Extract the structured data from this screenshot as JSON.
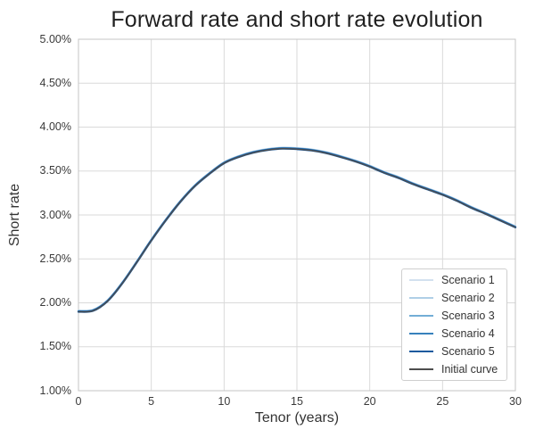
{
  "title": "Forward rate and short rate evolution",
  "axes": {
    "xlabel": "Tenor (years)",
    "ylabel": "Short rate",
    "x_ticks": [
      "0",
      "5",
      "10",
      "15",
      "20",
      "25",
      "30"
    ],
    "y_ticks": [
      "5.00%",
      "4.50%",
      "4.00%",
      "3.50%",
      "3.00%",
      "2.50%",
      "2.00%",
      "1.50%",
      "1.00%"
    ]
  },
  "legend": {
    "position": "lower right",
    "items": [
      {
        "label": "Scenario 1",
        "color": "#d3e1ef"
      },
      {
        "label": "Scenario 2",
        "color": "#afcfe6"
      },
      {
        "label": "Scenario 3",
        "color": "#73aed6"
      },
      {
        "label": "Scenario 4",
        "color": "#3781bc"
      },
      {
        "label": "Scenario 5",
        "color": "#1a5a9e"
      },
      {
        "label": "Initial curve",
        "color": "#4d4d4d"
      }
    ]
  },
  "colors": {
    "grid": "#dadada",
    "plot_border": "#c6c6c6",
    "tick_text": "#3a3a3a",
    "title_text": "#1f1f1f"
  },
  "chart_data": {
    "type": "line",
    "title": "Forward rate and short rate evolution",
    "xlabel": "Tenor (years)",
    "ylabel": "Short rate",
    "xlim": [
      0,
      30
    ],
    "ylim_percent": [
      1.0,
      5.0
    ],
    "grid": true,
    "legend_position": "lower right",
    "note": "All six curves overlap almost exactly; values in percent",
    "x": [
      0,
      1,
      2,
      3,
      4,
      5,
      6,
      7,
      8,
      9,
      10,
      11,
      12,
      13,
      14,
      15,
      16,
      17,
      18,
      19,
      20,
      21,
      22,
      23,
      24,
      25,
      26,
      27,
      28,
      29,
      30
    ],
    "series": [
      {
        "name": "Scenario 1",
        "color": "#d3e1ef",
        "values": [
          1.9,
          1.91,
          2.02,
          2.22,
          2.46,
          2.71,
          2.94,
          3.15,
          3.33,
          3.47,
          3.59,
          3.66,
          3.71,
          3.74,
          3.755,
          3.75,
          3.735,
          3.705,
          3.66,
          3.61,
          3.55,
          3.48,
          3.42,
          3.35,
          3.29,
          3.23,
          3.16,
          3.08,
          3.01,
          2.935,
          2.86
        ]
      },
      {
        "name": "Scenario 2",
        "color": "#afcfe6",
        "values": [
          1.9,
          1.91,
          2.02,
          2.22,
          2.46,
          2.71,
          2.94,
          3.15,
          3.33,
          3.47,
          3.59,
          3.66,
          3.71,
          3.74,
          3.755,
          3.75,
          3.735,
          3.705,
          3.66,
          3.61,
          3.55,
          3.48,
          3.42,
          3.35,
          3.29,
          3.23,
          3.16,
          3.08,
          3.01,
          2.935,
          2.86
        ]
      },
      {
        "name": "Scenario 3",
        "color": "#73aed6",
        "values": [
          1.9,
          1.91,
          2.02,
          2.22,
          2.46,
          2.71,
          2.94,
          3.15,
          3.33,
          3.47,
          3.59,
          3.66,
          3.71,
          3.74,
          3.755,
          3.75,
          3.735,
          3.705,
          3.66,
          3.61,
          3.55,
          3.48,
          3.42,
          3.35,
          3.29,
          3.23,
          3.16,
          3.08,
          3.01,
          2.935,
          2.86
        ]
      },
      {
        "name": "Scenario 4",
        "color": "#3781bc",
        "values": [
          1.9,
          1.91,
          2.02,
          2.22,
          2.46,
          2.71,
          2.94,
          3.15,
          3.33,
          3.47,
          3.59,
          3.66,
          3.71,
          3.74,
          3.755,
          3.75,
          3.735,
          3.705,
          3.66,
          3.61,
          3.55,
          3.48,
          3.42,
          3.35,
          3.29,
          3.23,
          3.16,
          3.08,
          3.01,
          2.935,
          2.86
        ]
      },
      {
        "name": "Scenario 5",
        "color": "#1a5a9e",
        "values": [
          1.9,
          1.91,
          2.02,
          2.22,
          2.46,
          2.71,
          2.94,
          3.15,
          3.33,
          3.47,
          3.59,
          3.66,
          3.71,
          3.74,
          3.755,
          3.75,
          3.735,
          3.705,
          3.66,
          3.61,
          3.55,
          3.48,
          3.42,
          3.35,
          3.29,
          3.23,
          3.16,
          3.08,
          3.01,
          2.935,
          2.86
        ]
      },
      {
        "name": "Initial curve",
        "color": "#4d4d4d",
        "values": [
          1.9,
          1.91,
          2.02,
          2.22,
          2.46,
          2.71,
          2.94,
          3.15,
          3.33,
          3.47,
          3.59,
          3.66,
          3.71,
          3.74,
          3.755,
          3.75,
          3.735,
          3.705,
          3.66,
          3.61,
          3.55,
          3.48,
          3.42,
          3.35,
          3.29,
          3.23,
          3.16,
          3.08,
          3.01,
          2.935,
          2.86
        ]
      }
    ]
  }
}
